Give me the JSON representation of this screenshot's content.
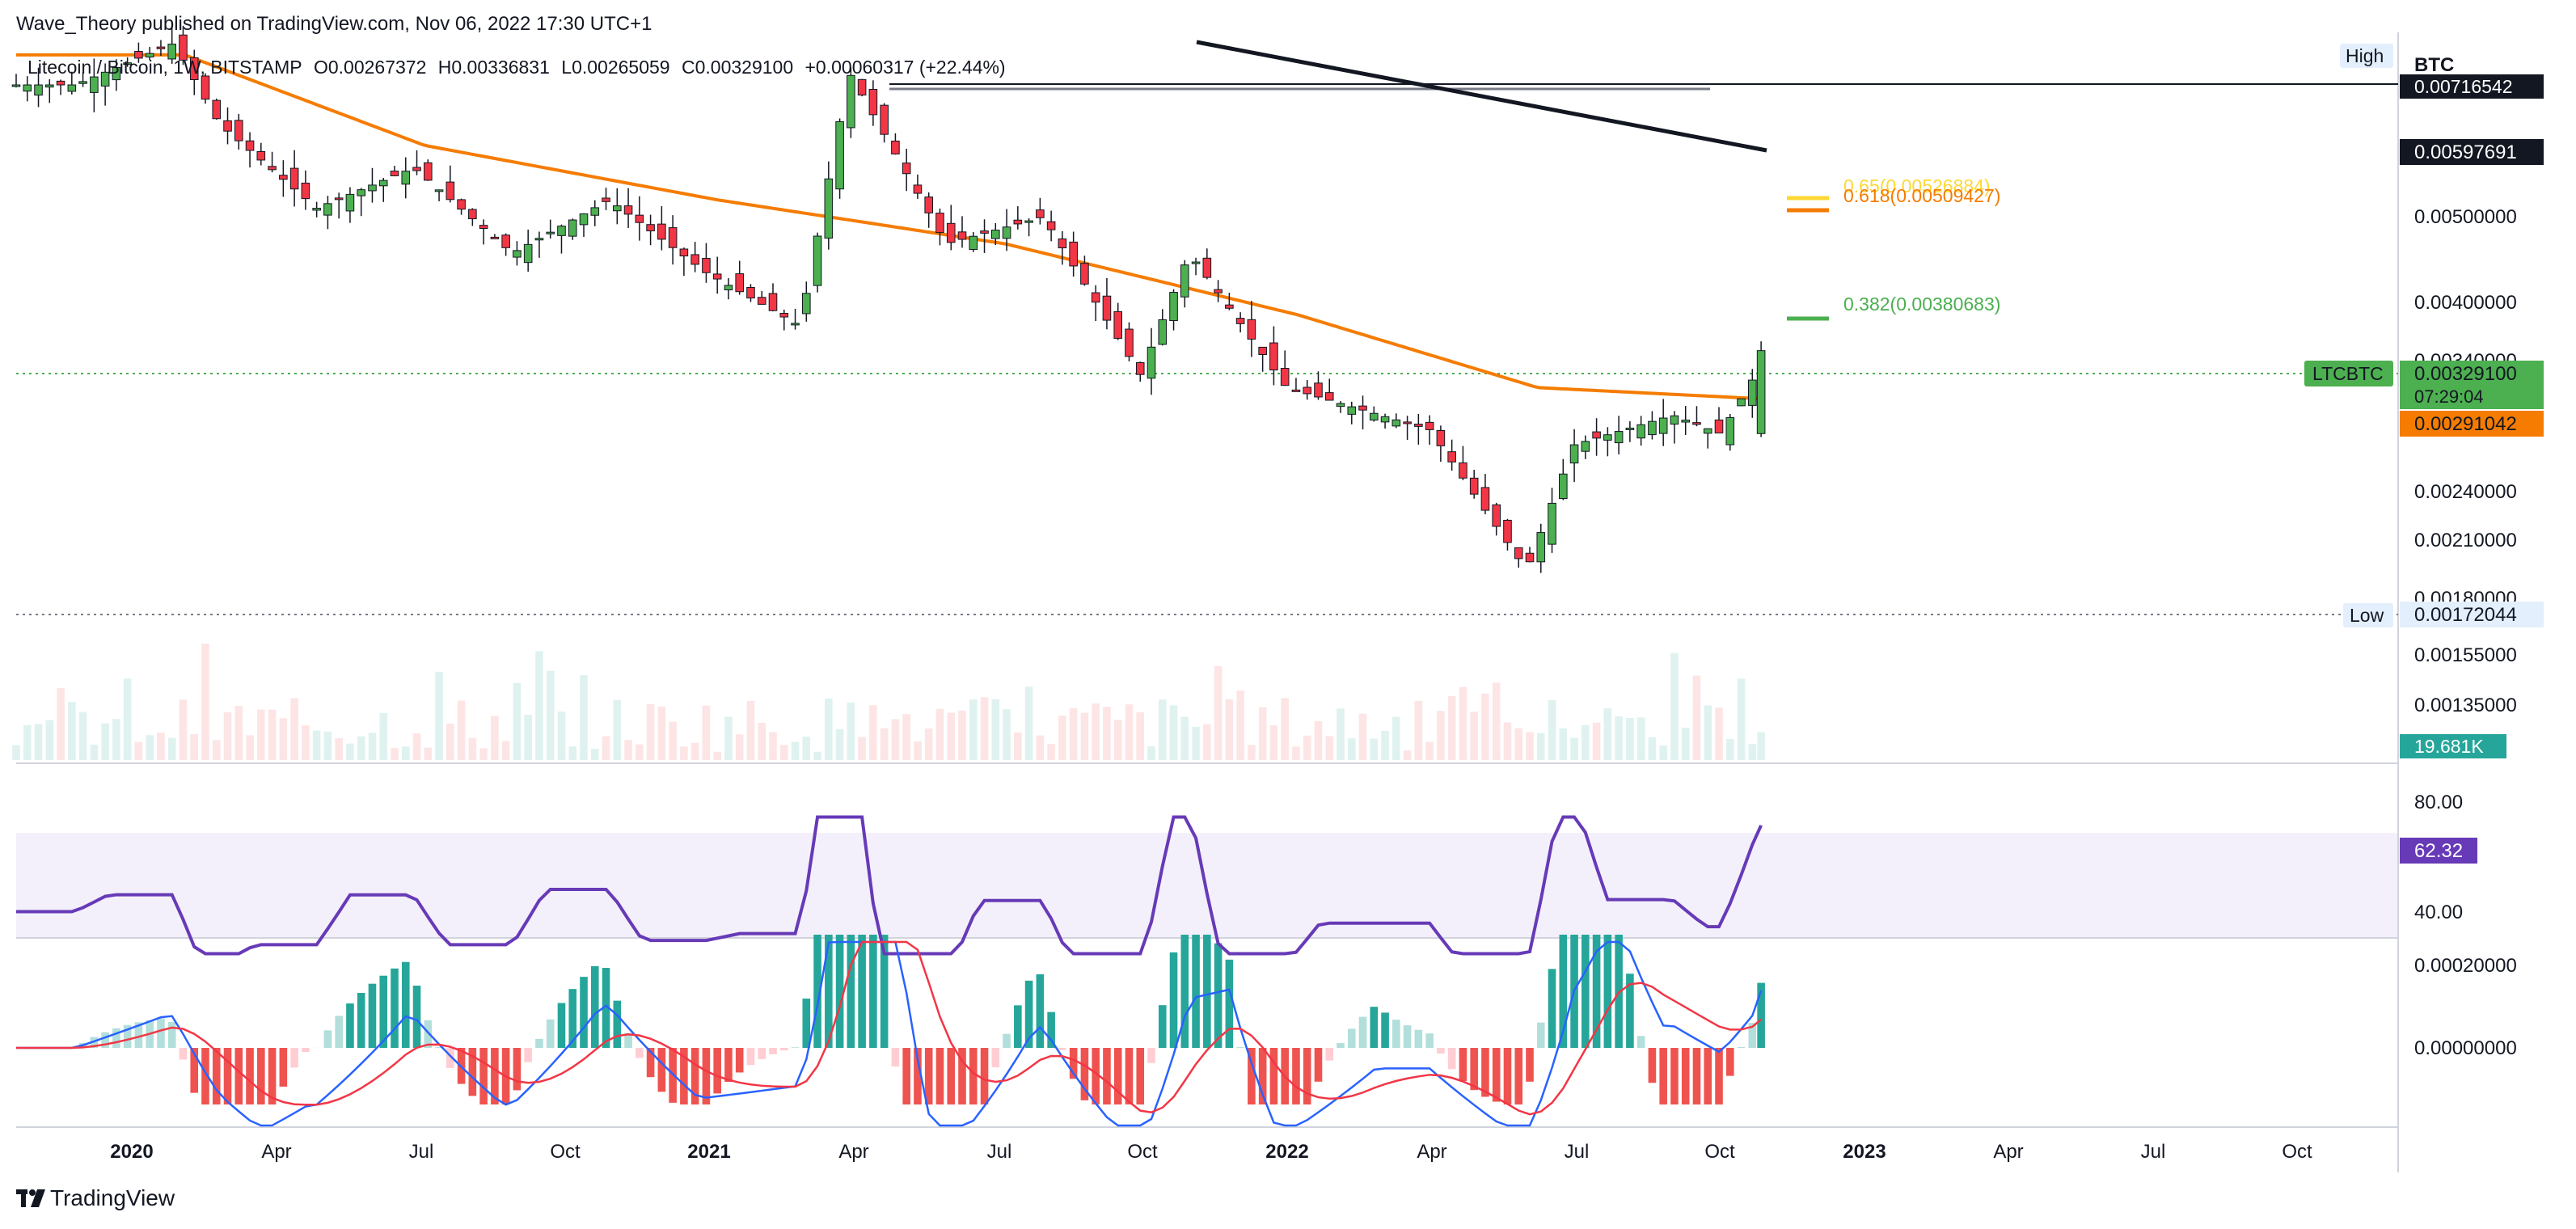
{
  "publisher": "Wave_Theory published on TradingView.com, Nov 06, 2022 17:30 UTC+1",
  "legend": {
    "symbol": "Litecoin / Bitcoin, 1W, BITSTAMP",
    "open": "O0.00267372",
    "high": "H0.00336831",
    "low": "L0.00265059",
    "close": "C0.00329100",
    "change": "+0.00060317 (+22.44%)"
  },
  "brand": "TradingView",
  "colors": {
    "up": "#26a69a",
    "down": "#ef5350",
    "price_up": "#4caf50",
    "price_down": "#f23645",
    "ema": "#f57c00",
    "rsi": "#673ab7",
    "macd": "#2962ff",
    "signal": "#f23645",
    "fib_382": "#4caf50",
    "fib_618": "#f57c00",
    "fib_65": "#fdd835"
  },
  "price_axis": {
    "currency": "BTC",
    "ticks": [
      "0.00500000",
      "0.00400000",
      "0.00340000",
      "0.00240000",
      "0.00210000",
      "0.00180000",
      "0.00155000",
      "0.00135000"
    ],
    "high_label": "High",
    "high_value": "0.00716542",
    "low_label": "Low",
    "low_value": "0.00172044",
    "trendline_value": "0.00597691",
    "symbol_tag": "LTCBTC",
    "last_price": "0.00329100",
    "countdown": "07:29:04",
    "ema_value": "0.00291042",
    "volume_value": "19.681K"
  },
  "fib": [
    {
      "label": "0.65(0.00526884)",
      "level": 0.00526884
    },
    {
      "label": "0.618(0.00509427)",
      "level": 0.00509427
    },
    {
      "label": "0.382(0.00380683)",
      "level": 0.00380683
    }
  ],
  "rsi": {
    "ticks": [
      "80.00",
      "40.00"
    ],
    "value": "62.32"
  },
  "macd": {
    "ticks": [
      "0.00020000",
      "0.00000000"
    ]
  },
  "time_axis": [
    "2020",
    "Apr",
    "Jul",
    "Oct",
    "2021",
    "Apr",
    "Jul",
    "Oct",
    "2022",
    "Apr",
    "Jul",
    "Oct",
    "2023",
    "Apr",
    "Jul",
    "Oct"
  ],
  "chart_data": {
    "type": "candlestick",
    "interval": "1W",
    "exchange": "BITSTAMP",
    "x_range": [
      "2019-11",
      "2022-11"
    ],
    "y_range": [
      0.0016,
      0.0073
    ],
    "scale": "log",
    "ohlc_keypoints": [
      {
        "date": "2019-12",
        "close": 0.0064
      },
      {
        "date": "2020-02",
        "close": 0.0071
      },
      {
        "date": "2020-03",
        "close": 0.0058
      },
      {
        "date": "2020-05",
        "close": 0.0047
      },
      {
        "date": "2020-07",
        "close": 0.0052
      },
      {
        "date": "2020-09",
        "close": 0.0042
      },
      {
        "date": "2020-11",
        "close": 0.0048
      },
      {
        "date": "2021-01",
        "close": 0.004
      },
      {
        "date": "2021-03",
        "close": 0.0035
      },
      {
        "date": "2021-04",
        "close": 0.0066
      },
      {
        "date": "2021-06",
        "close": 0.0043
      },
      {
        "date": "2021-08",
        "close": 0.0046
      },
      {
        "date": "2021-10",
        "close": 0.0031
      },
      {
        "date": "2021-11",
        "close": 0.0042
      },
      {
        "date": "2022-01",
        "close": 0.003
      },
      {
        "date": "2022-04",
        "close": 0.0027
      },
      {
        "date": "2022-06",
        "close": 0.0019
      },
      {
        "date": "2022-07",
        "close": 0.0026
      },
      {
        "date": "2022-09",
        "close": 0.0028
      },
      {
        "date": "2022-10",
        "close": 0.00267372
      },
      {
        "date": "2022-11",
        "open": 0.00267372,
        "high": 0.00336831,
        "low": 0.00265059,
        "close": 0.003291
      }
    ],
    "ema_keypoints": [
      {
        "date": "2020-02",
        "value": 0.0069
      },
      {
        "date": "2020-07",
        "value": 0.0055
      },
      {
        "date": "2021-01",
        "value": 0.0048
      },
      {
        "date": "2021-07",
        "value": 0.0043
      },
      {
        "date": "2022-01",
        "value": 0.0036
      },
      {
        "date": "2022-06",
        "value": 0.003
      },
      {
        "date": "2022-11",
        "value": 0.00291042
      }
    ]
  }
}
